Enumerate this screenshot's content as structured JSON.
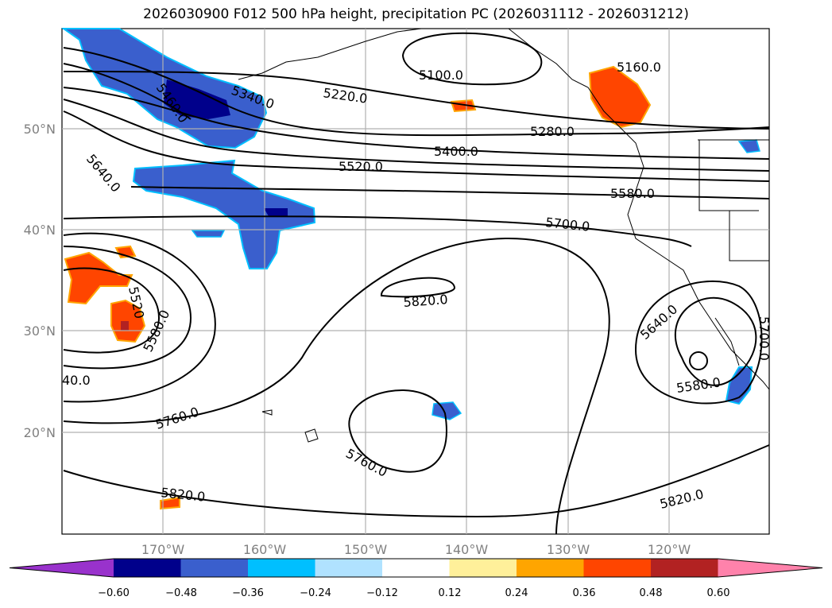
{
  "title": "2026030900 F012 500 hPa height, precipitation PC (2026031112 - 2026031212)",
  "map": {
    "lat_labels": [
      "50°N",
      "40°N",
      "30°N",
      "20°N"
    ],
    "lon_labels": [
      "170°W",
      "160°W",
      "150°W",
      "140°W",
      "130°W",
      "120°W"
    ],
    "contour_labels": [
      "5100.0",
      "5160.0",
      "5220.0",
      "5280.0",
      "5340.0",
      "5400.0",
      "5460.0",
      "5520.0",
      "5580.0",
      "5640.0",
      "5700.0",
      "5820.0",
      "5520",
      "5580.0",
      "40.0",
      "5760.0",
      "5820.0",
      "5760.0",
      "5640.0",
      "5580.0",
      "5700.0",
      "5820.0"
    ]
  },
  "colorbar": {
    "ticks": [
      "−0.60",
      "−0.48",
      "−0.36",
      "−0.24",
      "−0.12",
      "0.12",
      "0.24",
      "0.36",
      "0.48",
      "0.60"
    ],
    "colors": [
      "#9932cc",
      "#00008b",
      "#3a5fcd",
      "#00bfff",
      "#b0e2ff",
      "#ffffff",
      "#fff09a",
      "#ffa500",
      "#ff4500",
      "#b22222",
      "#ff82ab"
    ]
  }
}
